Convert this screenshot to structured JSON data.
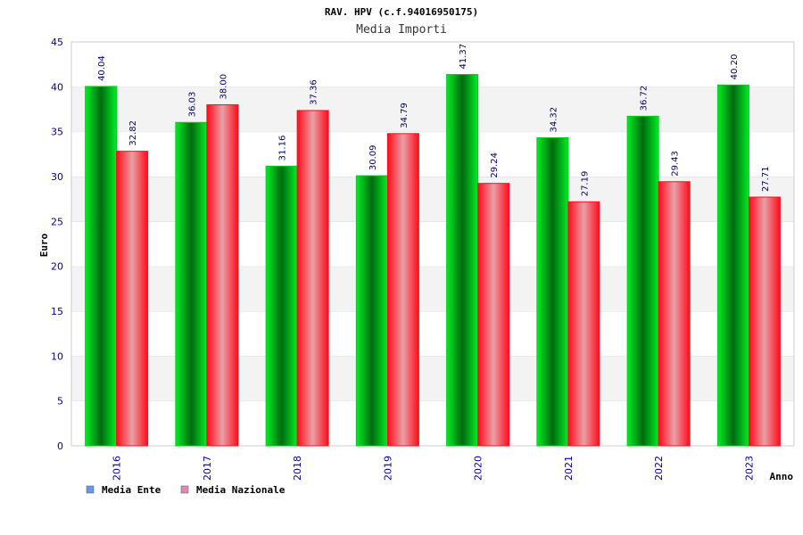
{
  "chart_data": {
    "type": "bar",
    "title": "RAV. HPV (c.f.94016950175)",
    "subtitle": "Media Importi",
    "xlabel": "Anno",
    "ylabel": "Euro",
    "ylim": [
      0,
      45
    ],
    "yticks": [
      0,
      5,
      10,
      15,
      20,
      25,
      30,
      35,
      40,
      45
    ],
    "grid": true,
    "legend_position": "bottom-left",
    "categories": [
      "2016",
      "2017",
      "2018",
      "2019",
      "2020",
      "2021",
      "2022",
      "2023"
    ],
    "series": [
      {
        "name": "Media Ente",
        "values": [
          40.04,
          36.03,
          31.16,
          30.09,
          41.37,
          34.32,
          36.72,
          40.2
        ],
        "labels": [
          "40.04",
          "36.03",
          "31.16",
          "30.09",
          "41.37",
          "34.32",
          "36.72",
          "40.20"
        ],
        "color": "#00cc22",
        "legend_color": "#6699ee"
      },
      {
        "name": "Media Nazionale",
        "values": [
          32.82,
          38.0,
          37.36,
          34.79,
          29.24,
          27.19,
          29.43,
          27.71
        ],
        "labels": [
          "32.82",
          "38.00",
          "37.36",
          "34.79",
          "29.24",
          "27.19",
          "29.43",
          "27.71"
        ],
        "color": "#ff1122",
        "legend_color": "#dd88bb"
      }
    ]
  }
}
